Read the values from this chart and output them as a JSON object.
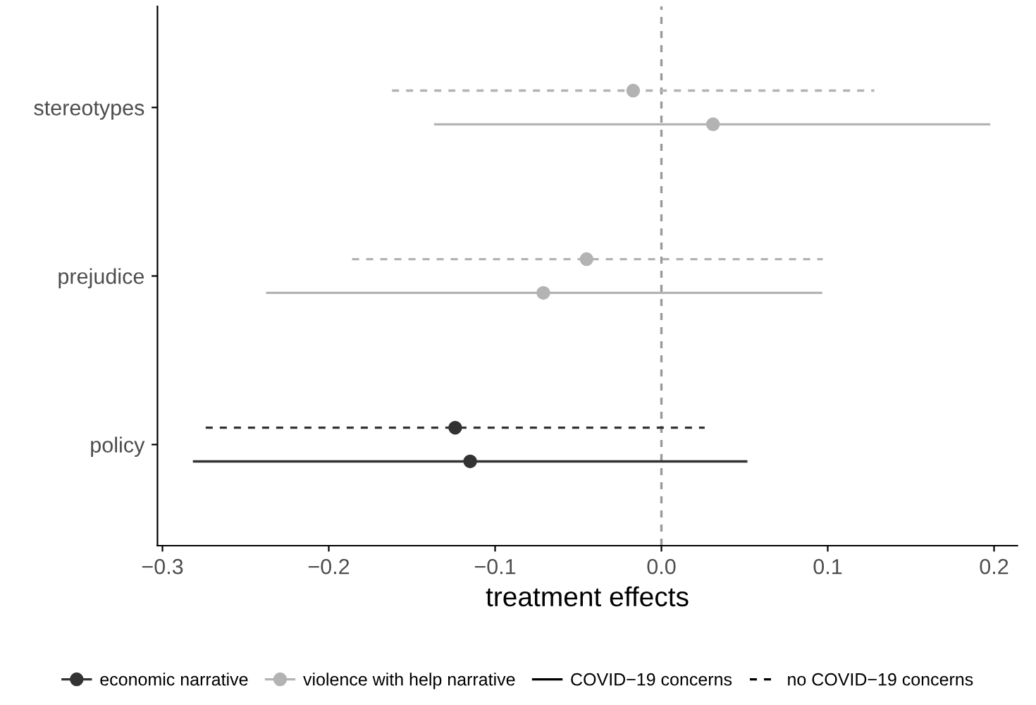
{
  "chart_data": {
    "type": "scatter",
    "orientation": "horizontal",
    "xlabel": "treatment effects",
    "categories": [
      "stereotypes",
      "prejudice",
      "policy"
    ],
    "xlim": [
      -0.303,
      0.214
    ],
    "xticks": [
      {
        "value": -0.3,
        "label": "−0.3"
      },
      {
        "value": -0.2,
        "label": "−0.2"
      },
      {
        "value": -0.1,
        "label": "−0.1"
      },
      {
        "value": 0.0,
        "label": "0.0"
      },
      {
        "value": 0.1,
        "label": "0.1"
      },
      {
        "value": 0.2,
        "label": "0.2"
      }
    ],
    "series": [
      {
        "name": "economic narrative",
        "color": "#333333",
        "line_style": "solid",
        "values": [
          null,
          null,
          -0.115
        ],
        "errors": [
          null,
          null,
          [
            -0.281,
            0.051
          ]
        ]
      },
      {
        "color": "#333333",
        "line_style": "dashed",
        "values": [
          null,
          null,
          -0.124
        ],
        "errors": [
          null,
          null,
          [
            -0.274,
            0.026
          ]
        ]
      },
      {
        "name": "violence with help narrative",
        "color": "#b3b3b3",
        "line_style": "solid",
        "values": [
          0.031,
          -0.071,
          null
        ],
        "errors": [
          [
            -0.136,
            0.197
          ],
          [
            -0.237,
            0.096
          ],
          null
        ]
      },
      {
        "color": "#b3b3b3",
        "line_style": "dashed",
        "values": [
          -0.017,
          -0.045,
          null
        ],
        "errors": [
          [
            -0.162,
            0.128
          ],
          [
            -0.186,
            0.097
          ],
          null
        ]
      },
      {
        "name": "COVID−19 concerns",
        "color": "#000000",
        "line_style": "solid",
        "values": [
          null,
          null,
          null
        ]
      },
      {
        "name": "no COVID−19 concerns",
        "color": "#000000",
        "line_style": "dashed",
        "values": [
          null,
          null,
          null
        ]
      }
    ],
    "ref_lines": [
      {
        "axis": "x",
        "value": 0.0,
        "color": "#999999",
        "line_style": "dashed"
      }
    ],
    "marker": "circle",
    "grid": false,
    "legend": "bottom"
  }
}
